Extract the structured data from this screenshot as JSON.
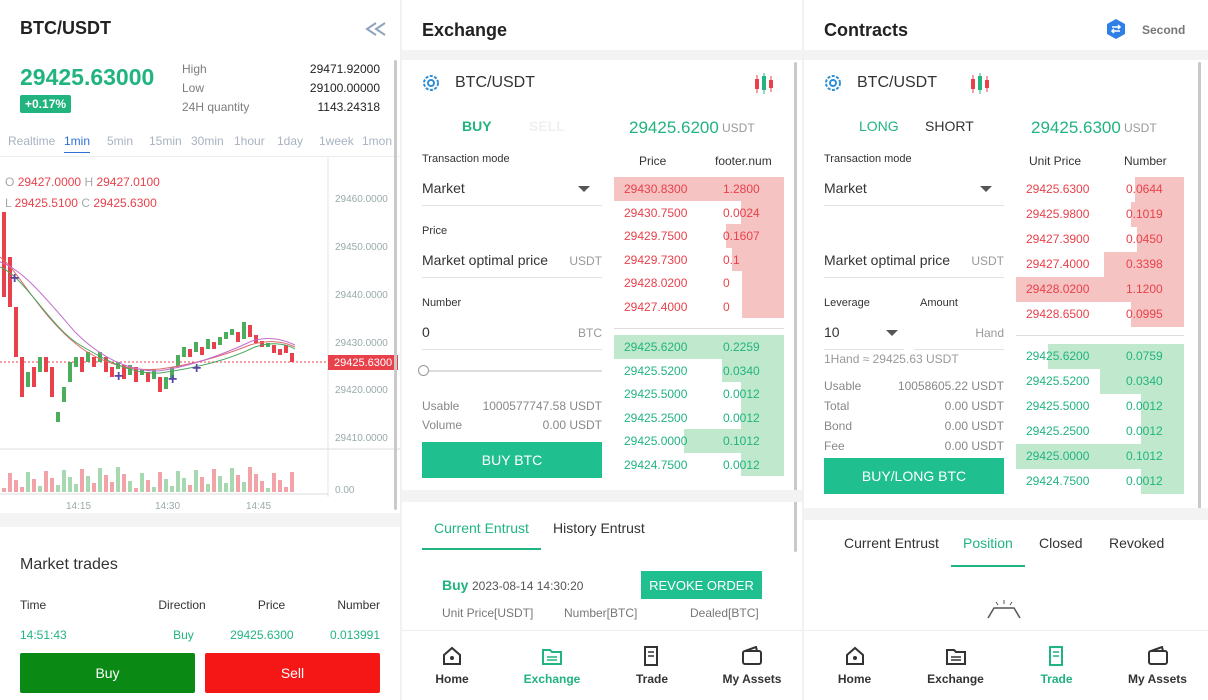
{
  "left": {
    "pair": "BTC/USDT",
    "price": "29425.63000",
    "change": "+0.17%",
    "high_label": "High",
    "high": "29471.92000",
    "low_label": "Low",
    "low": "29100.00000",
    "qty_label": "24H quantity",
    "qty": "1143.24318",
    "periods": [
      "Realtime",
      "1min",
      "5min",
      "15min",
      "30min",
      "1hour",
      "1day",
      "1week",
      "1mon"
    ],
    "ohlc": {
      "o_label": "O",
      "o": "29427.0000",
      "h_label": "H",
      "h": "29427.0100",
      "l_label": "L",
      "l": "29425.5100",
      "c_label": "C",
      "c": "29425.6300"
    },
    "y_ticks": [
      "29460.0000",
      "29450.0000",
      "29440.0000",
      "29430.0000",
      "29420.0000",
      "29410.0000"
    ],
    "current_price_tag": "29425.6300",
    "vol_tick": "0.00",
    "x_ticks": [
      "14:15",
      "14:30",
      "14:45"
    ],
    "market_trades_title": "Market trades",
    "trade_headers": [
      "Time",
      "Direction",
      "Price",
      "Number"
    ],
    "trade_row": [
      "14:51:43",
      "Buy",
      "29425.6300",
      "0.013991"
    ],
    "buy_label": "Buy",
    "sell_label": "Sell"
  },
  "exchange": {
    "title": "Exchange",
    "pair": "BTC/USDT",
    "buy_tab": "BUY",
    "sell_tab": "SELL",
    "last_price": "29425.6200",
    "last_unit": "USDT",
    "tx_mode_label": "Transaction mode",
    "tx_mode": "Market",
    "price_label": "Price",
    "price_value": "Market optimal price",
    "price_unit": "USDT",
    "number_label": "Number",
    "number_value": "0",
    "number_unit": "BTC",
    "usable_label": "Usable",
    "usable": "1000577747.58 USDT",
    "volume_label": "Volume",
    "volume": "0.00 USDT",
    "buy_button": "BUY BTC",
    "ob_headers": [
      "Price",
      "footer.num"
    ],
    "asks": [
      [
        "29430.8300",
        "1.2800"
      ],
      [
        "29430.7500",
        "0.0024"
      ],
      [
        "29429.7500",
        "0.1607"
      ],
      [
        "29429.7300",
        "0.1"
      ],
      [
        "29428.0200",
        "0"
      ],
      [
        "29427.4000",
        "0"
      ]
    ],
    "bids": [
      [
        "29425.6200",
        "0.2259"
      ],
      [
        "29425.5200",
        "0.0340"
      ],
      [
        "29425.5000",
        "0.0012"
      ],
      [
        "29425.2500",
        "0.0012"
      ],
      [
        "29425.0000",
        "0.1012"
      ],
      [
        "29424.7500",
        "0.0012"
      ]
    ],
    "entrust_tabs": [
      "Current Entrust",
      "History Entrust"
    ],
    "order": {
      "side": "Buy",
      "time": "2023-08-14 14:30:20",
      "revoke": "REVOKE ORDER",
      "cols": [
        "Unit Price[USDT]",
        "Number[BTC]",
        "Dealed[BTC]"
      ]
    }
  },
  "contracts": {
    "title": "Contracts",
    "second": "Second",
    "pair": "BTC/USDT",
    "long_tab": "LONG",
    "short_tab": "SHORT",
    "last_price": "29425.6300",
    "last_unit": "USDT",
    "tx_mode_label": "Transaction mode",
    "tx_mode": "Market",
    "price_value": "Market optimal price",
    "price_unit": "USDT",
    "leverage_label": "Leverage",
    "leverage": "10",
    "amount_label": "Amount",
    "amount_unit": "Hand",
    "hand_info": "1Hand ≈ 29425.63 USDT",
    "usable_label": "Usable",
    "usable": "10058605.22 USDT",
    "total_label": "Total",
    "total": "0.00 USDT",
    "bond_label": "Bond",
    "bond": "0.00 USDT",
    "fee_label": "Fee",
    "fee": "0.00 USDT",
    "buy_button": "BUY/LONG BTC",
    "ob_headers": [
      "Unit Price",
      "Number"
    ],
    "asks": [
      [
        "29425.6300",
        "0.0644"
      ],
      [
        "29425.9800",
        "0.1019"
      ],
      [
        "29427.3900",
        "0.0450"
      ],
      [
        "29427.4000",
        "0.3398"
      ],
      [
        "29428.0200",
        "1.1200"
      ],
      [
        "29428.6500",
        "0.0995"
      ]
    ],
    "bids": [
      [
        "29425.6200",
        "0.0759"
      ],
      [
        "29425.5200",
        "0.0340"
      ],
      [
        "29425.5000",
        "0.0012"
      ],
      [
        "29425.2500",
        "0.0012"
      ],
      [
        "29425.0000",
        "0.1012"
      ],
      [
        "29424.7500",
        "0.0012"
      ]
    ],
    "pos_tabs": [
      "Current Entrust",
      "Position",
      "Closed",
      "Revoked"
    ]
  },
  "tabbar": {
    "exchange_panel": [
      "Home",
      "Exchange",
      "Trade",
      "My Assets"
    ],
    "contracts_panel": [
      "Home",
      "Exchange",
      "Trade",
      "My Assets"
    ]
  },
  "colors": {
    "green": "#21b47f",
    "red": "#e8414b",
    "buy_green": "#0a8a14",
    "sell_red": "#f51616"
  },
  "icons": [
    "back-arrows-icon",
    "settings-gear-icon",
    "candlestick-icon",
    "dropdown-caret-icon",
    "home-icon",
    "exchange-folder-icon",
    "trade-doc-icon",
    "wallet-icon",
    "swap-circle-icon",
    "empty-box-icon"
  ]
}
